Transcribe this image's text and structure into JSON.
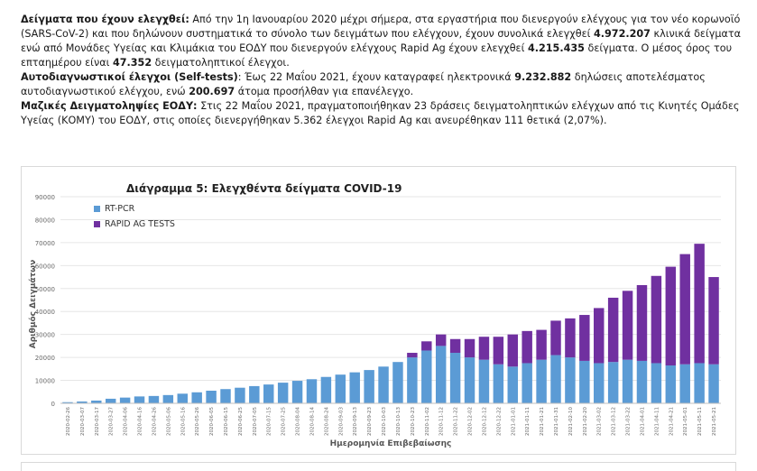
{
  "text": {
    "p1_label": "Δείγματα που έχουν ελεγχθεί:",
    "p1_a": " Από την 1η Ιανουαρίου 2020 μέχρι σήμερα, στα εργαστήρια που διενεργούν ελέγχους για τον νέο κορωνοϊό (SARS-CoV-2) και που δηλώνουν συστηματικά το σύνολο των δειγμάτων που ελέγχουν, έχουν συνολικά ελεγχθεί ",
    "p1_num1": "4.972.207",
    "p1_b": " κλινικά δείγματα ενώ από Μονάδες Υγείας και Κλιμάκια του ΕΟΔΥ που διενεργούν ελέγχους Rapid Ag έχουν ελεγχθεί ",
    "p1_num2": "4.215.435",
    "p1_c": " δείγματα. Ο μέσος όρος του επταημέρου είναι ",
    "p1_num3": "47.352",
    "p1_d": " δειγματοληπτικοί έλεγχοι.",
    "p2_label": "Αυτοδιαγνωστικοί έλεγχοι (Self-tests)",
    "p2_a": ": Έως 22 Μαΐου 2021, έχουν καταγραφεί ηλεκτρονικά ",
    "p2_num1": "9.232.882",
    "p2_b": " δηλώσεις αποτελέσματος αυτοδιαγνωστικού ελέγχου, ενώ ",
    "p2_num2": "200.697",
    "p2_c": " άτομα προσήλθαν για επανέλεγχο.",
    "p3_label": "Μαζικές Δειγματοληψίες ΕΟΔΥ:",
    "p3_a": " Στις 22 Μαΐου 2021, πραγματοποιήθηκαν 23 δράσεις δειγματοληπτικών ελέγχων από τις Κινητές Ομάδες Υγείας (ΚΟΜΥ) του ΕΟΔΥ, στις οποίες διενεργήθηκαν 5.362 έλεγχοι Rapid Ag και ανευρέθηκαν 111 θετικά (2,07%)."
  },
  "chart_data": {
    "type": "bar",
    "stacked": true,
    "title": "Διάγραμμα 5: Ελεγχθέντα δείγματα COVID-19",
    "xlabel": "Ημερομηνία Επιβεβαίωσης",
    "ylabel": "Αριθμός Δειγμάτων",
    "ylim": [
      0,
      90000
    ],
    "y_ticks": [
      "0",
      "10000",
      "20000",
      "30000",
      "40000",
      "50000",
      "60000",
      "70000",
      "80000",
      "90000"
    ],
    "x_tick_labels": [
      "2020-02-26",
      "2020-03-07",
      "2020-03-17",
      "2020-03-27",
      "2020-04-06",
      "2020-04-16",
      "2020-04-26",
      "2020-05-06",
      "2020-05-16",
      "2020-05-26",
      "2020-06-05",
      "2020-06-15",
      "2020-06-25",
      "2020-07-05",
      "2020-07-15",
      "2020-07-25",
      "2020-08-04",
      "2020-08-14",
      "2020-08-24",
      "2020-09-03",
      "2020-09-13",
      "2020-09-23",
      "2020-10-03",
      "2020-10-13",
      "2020-10-23",
      "2020-11-02",
      "2020-11-12",
      "2020-11-22",
      "2020-12-02",
      "2020-12-12",
      "2020-12-22",
      "2021-01-01",
      "2021-01-11",
      "2021-01-21",
      "2021-01-31",
      "2021-02-10",
      "2021-02-20",
      "2021-03-02",
      "2021-03-12",
      "2021-03-22",
      "2021-04-01",
      "2021-04-11",
      "2021-04-21",
      "2021-05-01",
      "2021-05-11",
      "2021-05-21"
    ],
    "series": [
      {
        "name": "RT-PCR",
        "color": "#5b9bd5",
        "values": [
          500,
          800,
          1200,
          2000,
          2500,
          3000,
          3200,
          3600,
          4200,
          4800,
          5500,
          6200,
          6800,
          7500,
          8200,
          9000,
          9800,
          10500,
          11500,
          12500,
          13500,
          14500,
          16000,
          18000,
          20000,
          23000,
          25000,
          22000,
          20000,
          19000,
          17000,
          16000,
          17500,
          19000,
          21000,
          20000,
          18500,
          17500,
          18000,
          19000,
          18500,
          17500,
          16500,
          17000,
          17500,
          17000
        ]
      },
      {
        "name": "RAPID AG TESTS",
        "color": "#7030a0",
        "values": [
          0,
          0,
          0,
          0,
          0,
          0,
          0,
          0,
          0,
          0,
          0,
          0,
          0,
          0,
          0,
          0,
          0,
          0,
          0,
          0,
          0,
          0,
          0,
          0,
          2000,
          4000,
          5000,
          6000,
          8000,
          10000,
          12000,
          14000,
          14000,
          13000,
          15000,
          17000,
          20000,
          24000,
          28000,
          30000,
          33000,
          38000,
          43000,
          48000,
          52000,
          38000
        ]
      }
    ],
    "legend_position": "top-left",
    "grid": true
  }
}
